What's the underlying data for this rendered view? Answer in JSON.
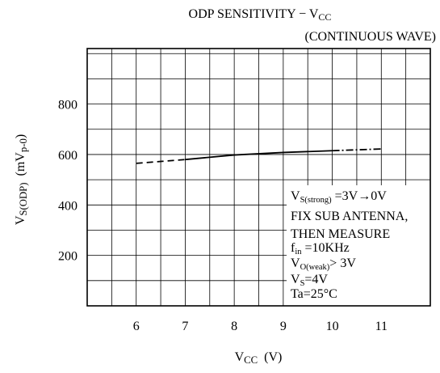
{
  "chart_data": {
    "type": "line",
    "title": [
      {
        "text": "ODP SENSITIVITY − V",
        "sub": false
      },
      {
        "text": "CC",
        "sub": true
      }
    ],
    "subtitle": [
      {
        "text": "(CONTINUOUS WAVE)",
        "sub": false
      }
    ],
    "x_label": [
      {
        "text": "V",
        "sub": false
      },
      {
        "text": "CC",
        "sub": true
      },
      {
        "text": "  (V)",
        "sub": false
      }
    ],
    "y_label": [
      {
        "text": "V",
        "sub": false
      },
      {
        "text": "S(ODP)",
        "sub": true
      },
      {
        "text": "  (mV",
        "sub": false
      },
      {
        "text": "p-0",
        "sub": true
      },
      {
        "text": ")",
        "sub": false
      }
    ],
    "x": [
      6,
      7,
      8,
      9,
      10,
      11
    ],
    "series": [
      {
        "color": "#000000",
        "values": [
          565,
          580,
          598,
          608,
          615,
          622
        ]
      }
    ],
    "segment_styles": [
      "dashed",
      "solid",
      "solid",
      "solid",
      "dashdot"
    ],
    "xlim": [
      5,
      12
    ],
    "ylim": [
      0,
      1020
    ],
    "xticks": [
      6,
      7,
      8,
      9,
      10,
      11
    ],
    "yticks": [
      200,
      400,
      600,
      800
    ],
    "xgrid": [
      5.5,
      6,
      6.5,
      7,
      7.5,
      8,
      8.5,
      9,
      9.5,
      10,
      10.5,
      11,
      11.5
    ],
    "ygrid": [
      100,
      200,
      300,
      400,
      500,
      600,
      700,
      800,
      900,
      1000
    ],
    "annotation": [
      [
        {
          "text": "V",
          "sub": false
        },
        {
          "text": "S(strong)",
          "sub": true
        },
        {
          "text": " =3V→0V",
          "sub": false
        }
      ],
      [
        {
          "text": "FIX SUB ANTENNA,",
          "sub": false
        }
      ],
      [
        {
          "text": "THEN MEASURE",
          "sub": false
        }
      ],
      [
        {
          "text": "f",
          "sub": false
        },
        {
          "text": "in",
          "sub": true
        },
        {
          "text": " =10KHz",
          "sub": false
        }
      ],
      [
        {
          "text": "V",
          "sub": false
        },
        {
          "text": "O(weak)",
          "sub": true
        },
        {
          "text": "> 3V",
          "sub": false
        }
      ],
      [
        {
          "text": "V",
          "sub": false
        },
        {
          "text": "S",
          "sub": true
        },
        {
          "text": "=4V",
          "sub": false
        }
      ],
      [
        {
          "text": "Ta=25°C",
          "sub": false
        }
      ]
    ]
  }
}
